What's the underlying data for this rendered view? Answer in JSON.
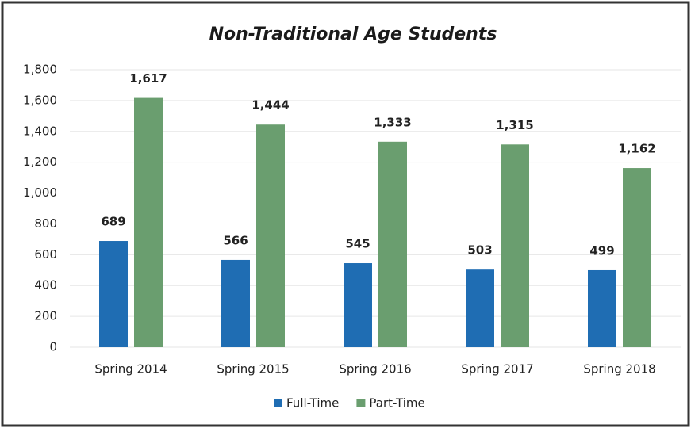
{
  "chart_data": {
    "type": "bar",
    "title": "Non-Traditional Age Students",
    "categories": [
      "Spring 2014",
      "Spring 2015",
      "Spring 2016",
      "Spring 2017",
      "Spring 2018"
    ],
    "series": [
      {
        "name": "Full-Time",
        "color": "#1f6db3",
        "values": [
          689,
          566,
          545,
          503,
          499
        ]
      },
      {
        "name": "Part-Time",
        "color": "#6a9e6f",
        "values": [
          1617,
          1444,
          1333,
          1315,
          1162
        ],
        "value_labels": [
          "1,617",
          "1,444",
          "1,333",
          "1,315",
          "1,162"
        ]
      }
    ],
    "ylim": [
      0,
      1800
    ],
    "yticks": [
      0,
      200,
      400,
      600,
      800,
      {
        "value": 1000,
        "label": "1,000"
      },
      {
        "value": 1200,
        "label": "1,200"
      },
      {
        "value": 1400,
        "label": "1,400"
      },
      {
        "value": 1600,
        "label": "1,600"
      },
      {
        "value": 1800,
        "label": "1,800"
      }
    ],
    "grid": true,
    "legend": "bottom"
  }
}
